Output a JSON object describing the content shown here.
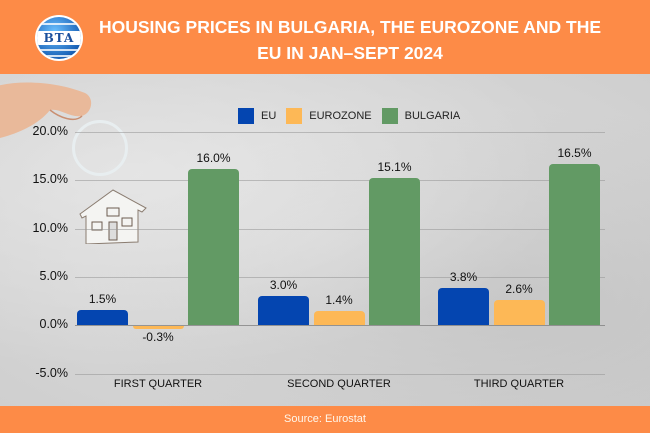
{
  "header": {
    "logo_text": "BTA",
    "title": "HOUSING PRICES IN BULGARIA, THE EUROZONE AND THE EU IN JAN–SEPT 2024"
  },
  "footer": {
    "source": "Source: Eurostat"
  },
  "colors": {
    "header_bg": "#fd8b47",
    "eu": "#0445b0",
    "eurozone": "#fdb856",
    "bulgaria": "#629a64"
  },
  "chart_data": {
    "type": "bar",
    "title": "HOUSING PRICES IN BULGARIA, THE EUROZONE AND THE EU IN JAN–SEPT 2024",
    "categories": [
      "FIRST QUARTER",
      "SECOND QUARTER",
      "THIRD QUARTER"
    ],
    "series": [
      {
        "name": "EU",
        "color": "#0445b0",
        "values": [
          1.5,
          3.0,
          3.8
        ],
        "labels": [
          "1.5%",
          "3.0%",
          "3.8%"
        ]
      },
      {
        "name": "EUROZONE",
        "color": "#fdb856",
        "values": [
          -0.3,
          1.4,
          2.6
        ],
        "labels": [
          "-0.3%",
          "1.4%",
          "2.6%"
        ]
      },
      {
        "name": "BULGARIA",
        "color": "#629a64",
        "values": [
          16.0,
          15.1,
          16.5
        ],
        "labels": [
          "16.0%",
          "15.1%",
          "16.5%"
        ]
      }
    ],
    "yticks": [
      "20.0%",
      "15.0%",
      "10.0%",
      "5.0%",
      "0.0%",
      "-5.0%"
    ],
    "ylim": [
      -5,
      20
    ],
    "xlabel": "",
    "ylabel": "",
    "grid": true,
    "legend_position": "top",
    "source": "Source: Eurostat"
  }
}
